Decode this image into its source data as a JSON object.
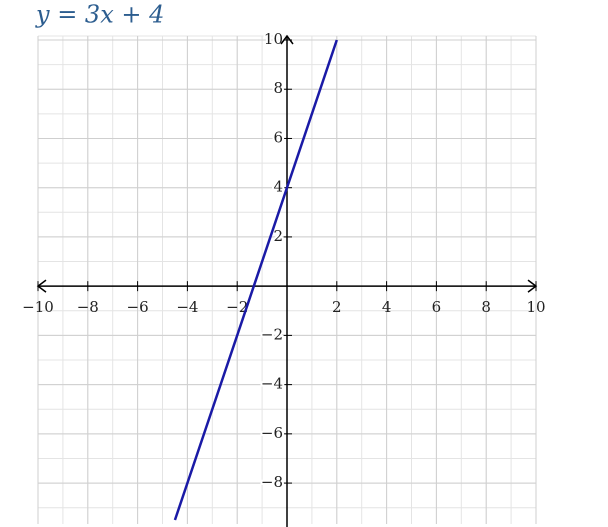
{
  "chart_data": {
    "type": "line",
    "title": "y = 3x + 4",
    "x": [
      -4.5,
      2
    ],
    "series": [
      {
        "name": "y = 3x + 4",
        "color": "#1a1aa6",
        "values": [
          -9.5,
          10
        ]
      }
    ],
    "xlim": [
      -10,
      10
    ],
    "ylim": [
      -9.5,
      10
    ],
    "xticks": [
      {
        "value": -10,
        "label": "−10"
      },
      {
        "value": -8,
        "label": "−8"
      },
      {
        "value": -6,
        "label": "−6"
      },
      {
        "value": -4,
        "label": "−4"
      },
      {
        "value": -2,
        "label": "−2"
      },
      2,
      4,
      6,
      8,
      10
    ],
    "yticks": [
      {
        "value": -8,
        "label": "−8"
      },
      {
        "value": -6,
        "label": "−6"
      },
      {
        "value": -4,
        "label": "−4"
      },
      {
        "value": -2,
        "label": "−2"
      },
      2,
      4,
      6,
      8,
      10
    ],
    "grid": true,
    "minor_grid_step": 1
  }
}
